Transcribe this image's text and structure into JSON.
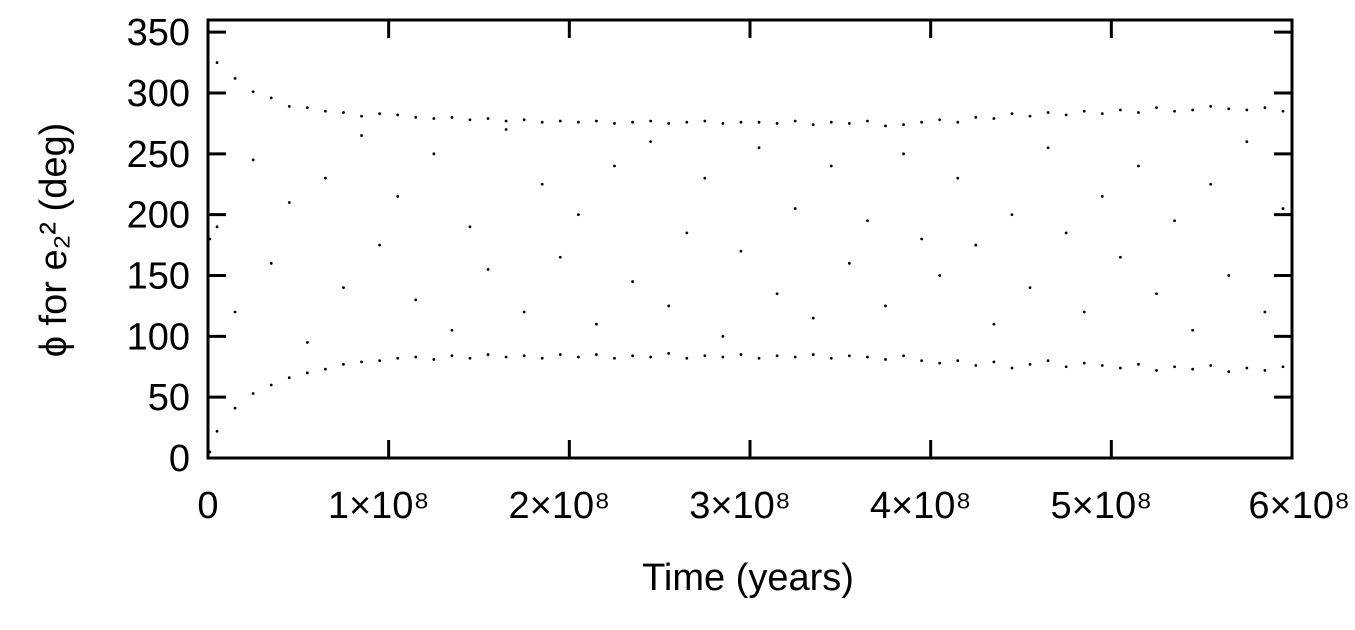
{
  "chart_data": {
    "type": "scatter",
    "x_label": "Time (years)",
    "y_label": "ϕ for e₂² (deg)",
    "color": "#000000",
    "xlim": [
      0,
      600000000
    ],
    "ylim": [
      0,
      360
    ],
    "xticks": [
      0,
      {
        "value": 100000000,
        "label": "1×10⁸"
      },
      {
        "value": 200000000,
        "label": "2×10⁸"
      },
      {
        "value": 300000000,
        "label": "3×10⁸"
      },
      {
        "value": 400000000,
        "label": "4×10⁸"
      },
      {
        "value": 500000000,
        "label": "5×10⁸"
      },
      {
        "value": 600000000,
        "label": "6×10⁸"
      }
    ],
    "yticks": [
      0,
      50,
      100,
      150,
      200,
      250,
      300,
      350
    ],
    "x": [
      1000000.0,
      1000000.0,
      2000000.0,
      5000000.0,
      5000000.0,
      5000000.0,
      15000000.0,
      15000000.0,
      15000000.0,
      25000000.0,
      25000000.0,
      25000000.0,
      35000000.0,
      35000000.0,
      35000000.0,
      45000000.0,
      45000000.0,
      45000000.0,
      55000000.0,
      55000000.0,
      55000000.0,
      65000000.0,
      65000000.0,
      65000000.0,
      75000000.0,
      75000000.0,
      75000000.0,
      85000000.0,
      85000000.0,
      85000000.0,
      95000000.0,
      95000000.0,
      95000000.0,
      105000000.0,
      105000000.0,
      105000000.0,
      115000000.0,
      115000000.0,
      115000000.0,
      125000000.0,
      125000000.0,
      125000000.0,
      135000000.0,
      135000000.0,
      135000000.0,
      145000000.0,
      145000000.0,
      145000000.0,
      155000000.0,
      155000000.0,
      155000000.0,
      165000000.0,
      165000000.0,
      165000000.0,
      175000000.0,
      175000000.0,
      175000000.0,
      185000000.0,
      185000000.0,
      185000000.0,
      195000000.0,
      195000000.0,
      195000000.0,
      205000000.0,
      205000000.0,
      205000000.0,
      215000000.0,
      215000000.0,
      215000000.0,
      225000000.0,
      225000000.0,
      225000000.0,
      235000000.0,
      235000000.0,
      235000000.0,
      245000000.0,
      245000000.0,
      245000000.0,
      255000000.0,
      255000000.0,
      255000000.0,
      265000000.0,
      265000000.0,
      265000000.0,
      275000000.0,
      275000000.0,
      275000000.0,
      285000000.0,
      285000000.0,
      285000000.0,
      295000000.0,
      295000000.0,
      295000000.0,
      305000000.0,
      305000000.0,
      305000000.0,
      315000000.0,
      315000000.0,
      315000000.0,
      325000000.0,
      325000000.0,
      325000000.0,
      335000000.0,
      335000000.0,
      335000000.0,
      345000000.0,
      345000000.0,
      345000000.0,
      355000000.0,
      355000000.0,
      355000000.0,
      365000000.0,
      365000000.0,
      365000000.0,
      375000000.0,
      375000000.0,
      375000000.0,
      385000000.0,
      385000000.0,
      385000000.0,
      395000000.0,
      395000000.0,
      395000000.0,
      405000000.0,
      405000000.0,
      405000000.0,
      415000000.0,
      415000000.0,
      415000000.0,
      425000000.0,
      425000000.0,
      425000000.0,
      435000000.0,
      435000000.0,
      435000000.0,
      445000000.0,
      445000000.0,
      445000000.0,
      455000000.0,
      455000000.0,
      455000000.0,
      465000000.0,
      465000000.0,
      465000000.0,
      475000000.0,
      475000000.0,
      475000000.0,
      485000000.0,
      485000000.0,
      485000000.0,
      495000000.0,
      495000000.0,
      495000000.0,
      505000000.0,
      505000000.0,
      505000000.0,
      515000000.0,
      515000000.0,
      515000000.0,
      525000000.0,
      525000000.0,
      525000000.0,
      535000000.0,
      535000000.0,
      535000000.0,
      545000000.0,
      545000000.0,
      545000000.0,
      555000000.0,
      555000000.0,
      555000000.0,
      565000000.0,
      565000000.0,
      565000000.0,
      575000000.0,
      575000000.0,
      575000000.0,
      585000000.0,
      585000000.0,
      585000000.0,
      595000000.0,
      595000000.0,
      595000000.0
    ],
    "values": [
      5,
      180,
      350,
      22,
      190,
      325,
      41,
      120,
      312,
      53,
      245,
      301,
      60,
      160,
      296,
      66,
      210,
      289,
      70,
      95,
      288,
      73,
      230,
      285,
      77,
      140,
      284,
      79,
      265,
      281,
      80,
      175,
      283,
      82,
      215,
      282,
      83,
      130,
      280,
      81,
      250,
      279,
      84,
      105,
      280,
      82,
      190,
      278,
      85,
      155,
      279,
      83,
      270,
      277,
      84,
      120,
      278,
      82,
      225,
      276,
      85,
      165,
      277,
      83,
      200,
      276,
      85,
      110,
      277,
      82,
      240,
      275,
      84,
      145,
      276,
      83,
      260,
      277,
      86,
      125,
      275,
      82,
      185,
      276,
      84,
      230,
      277,
      83,
      100,
      275,
      85,
      170,
      276,
      82,
      255,
      276,
      84,
      135,
      275,
      83,
      205,
      277,
      85,
      115,
      274,
      82,
      240,
      276,
      84,
      160,
      275,
      83,
      195,
      277,
      81,
      125,
      273,
      84,
      250,
      274,
      80,
      180,
      276,
      78,
      150,
      278,
      80,
      230,
      276,
      76,
      175,
      280,
      79,
      110,
      279,
      74,
      200,
      283,
      77,
      140,
      281,
      80,
      255,
      284,
      75,
      185,
      282,
      78,
      120,
      285,
      76,
      215,
      283,
      74,
      165,
      286,
      77,
      240,
      284,
      72,
      135,
      288,
      75,
      195,
      285,
      73,
      105,
      286,
      76,
      225,
      289,
      71,
      150,
      287,
      74,
      260,
      286,
      72,
      120,
      288,
      75,
      205,
      285
    ]
  }
}
